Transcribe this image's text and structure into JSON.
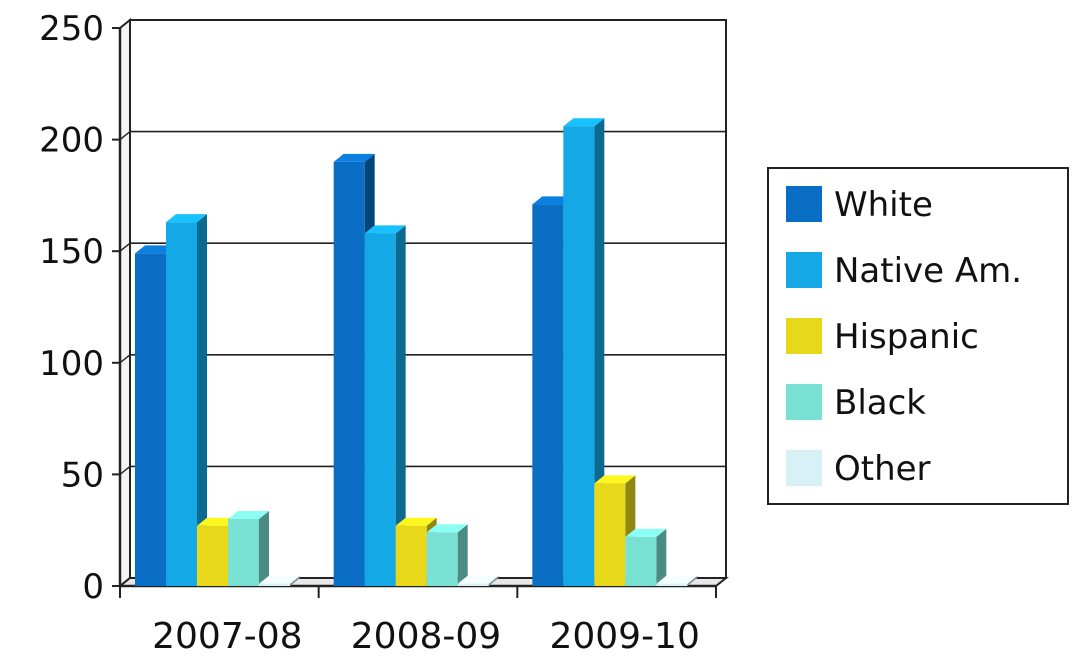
{
  "chart_data": {
    "type": "bar",
    "categories": [
      "2007-08",
      "2008-09",
      "2009-10"
    ],
    "series": [
      {
        "name": "White",
        "values": [
          149,
          190,
          171
        ],
        "color": "#0a6fc4"
      },
      {
        "name": "Native Am.",
        "values": [
          163,
          158,
          206
        ],
        "color": "#14a9e6"
      },
      {
        "name": "Hispanic",
        "values": [
          27,
          27,
          46
        ],
        "color": "#e8d81a"
      },
      {
        "name": "Black",
        "values": [
          30,
          24,
          22
        ],
        "color": "#79e0d4"
      },
      {
        "name": "Other",
        "values": [
          1,
          1,
          1
        ],
        "color": "#d6f2f6"
      }
    ],
    "yticks": [
      "0",
      "50",
      "100",
      "150",
      "200",
      "250"
    ],
    "ylim": [
      0,
      250
    ],
    "grid": true,
    "legend": "right"
  }
}
